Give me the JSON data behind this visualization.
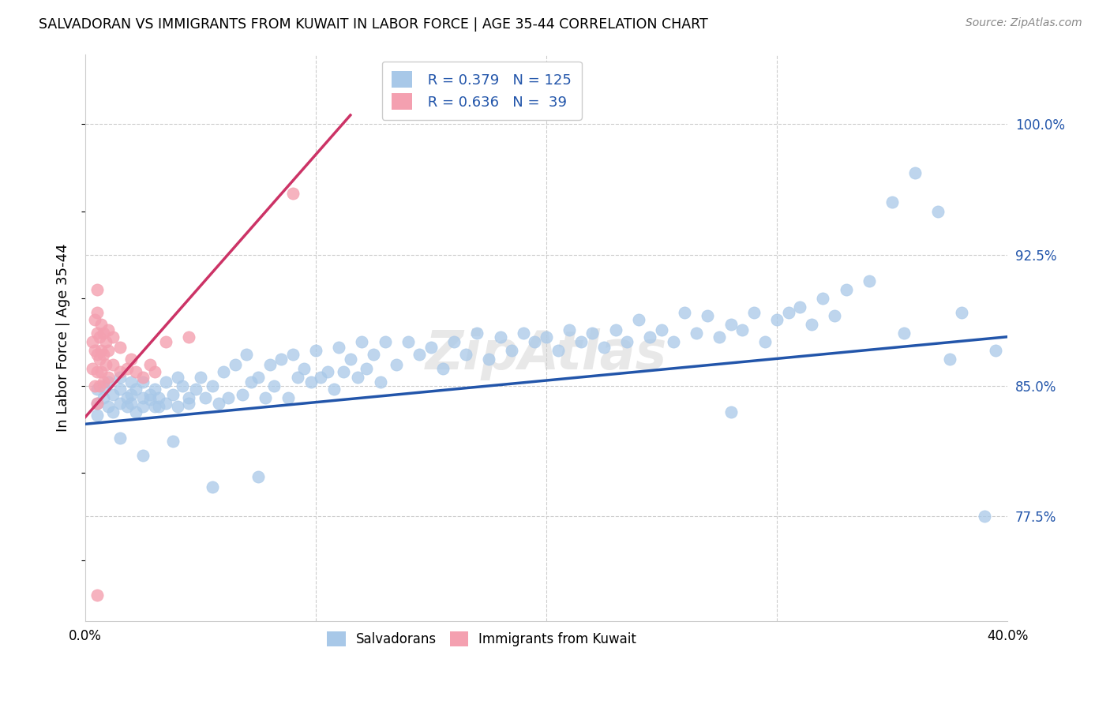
{
  "title": "SALVADORAN VS IMMIGRANTS FROM KUWAIT IN LABOR FORCE | AGE 35-44 CORRELATION CHART",
  "source": "Source: ZipAtlas.com",
  "ylabel": "In Labor Force | Age 35-44",
  "ytick_labels": [
    "77.5%",
    "85.0%",
    "92.5%",
    "100.0%"
  ],
  "ytick_values": [
    0.775,
    0.85,
    0.925,
    1.0
  ],
  "xlim": [
    0.0,
    0.4
  ],
  "ylim": [
    0.715,
    1.04
  ],
  "legend_r1": "R = 0.379",
  "legend_n1": "N = 125",
  "legend_r2": "R = 0.636",
  "legend_n2": "N =  39",
  "blue_color": "#a8c8e8",
  "pink_color": "#f4a0b0",
  "blue_line_color": "#2255aa",
  "pink_line_color": "#cc3366",
  "watermark": "ZipAtlas",
  "blue_trendline_x": [
    0.0,
    0.4
  ],
  "blue_trendline_y": [
    0.828,
    0.878
  ],
  "pink_trendline_x": [
    0.0,
    0.115
  ],
  "pink_trendline_y": [
    0.832,
    1.005
  ],
  "blue_scatter_x": [
    0.005,
    0.005,
    0.005,
    0.008,
    0.008,
    0.01,
    0.01,
    0.012,
    0.012,
    0.015,
    0.015,
    0.015,
    0.018,
    0.018,
    0.02,
    0.02,
    0.02,
    0.022,
    0.022,
    0.025,
    0.025,
    0.025,
    0.028,
    0.028,
    0.03,
    0.03,
    0.032,
    0.032,
    0.035,
    0.035,
    0.038,
    0.04,
    0.04,
    0.042,
    0.045,
    0.045,
    0.048,
    0.05,
    0.052,
    0.055,
    0.058,
    0.06,
    0.062,
    0.065,
    0.068,
    0.07,
    0.072,
    0.075,
    0.078,
    0.08,
    0.082,
    0.085,
    0.088,
    0.09,
    0.092,
    0.095,
    0.098,
    0.1,
    0.102,
    0.105,
    0.108,
    0.11,
    0.112,
    0.115,
    0.118,
    0.12,
    0.122,
    0.125,
    0.128,
    0.13,
    0.135,
    0.14,
    0.145,
    0.15,
    0.155,
    0.16,
    0.165,
    0.17,
    0.175,
    0.18,
    0.185,
    0.19,
    0.195,
    0.2,
    0.205,
    0.21,
    0.215,
    0.22,
    0.225,
    0.23,
    0.235,
    0.24,
    0.245,
    0.25,
    0.255,
    0.26,
    0.265,
    0.27,
    0.275,
    0.28,
    0.285,
    0.29,
    0.295,
    0.3,
    0.305,
    0.31,
    0.315,
    0.32,
    0.325,
    0.33,
    0.34,
    0.35,
    0.355,
    0.36,
    0.37,
    0.375,
    0.38,
    0.39,
    0.395,
    0.015,
    0.025,
    0.038,
    0.055,
    0.075,
    0.28
  ],
  "blue_scatter_y": [
    0.84,
    0.833,
    0.848,
    0.843,
    0.85,
    0.838,
    0.852,
    0.845,
    0.835,
    0.84,
    0.848,
    0.855,
    0.843,
    0.838,
    0.845,
    0.852,
    0.84,
    0.848,
    0.835,
    0.843,
    0.852,
    0.838,
    0.845,
    0.842,
    0.838,
    0.848,
    0.843,
    0.838,
    0.852,
    0.84,
    0.845,
    0.855,
    0.838,
    0.85,
    0.843,
    0.84,
    0.848,
    0.855,
    0.843,
    0.85,
    0.84,
    0.858,
    0.843,
    0.862,
    0.845,
    0.868,
    0.852,
    0.855,
    0.843,
    0.862,
    0.85,
    0.865,
    0.843,
    0.868,
    0.855,
    0.86,
    0.852,
    0.87,
    0.855,
    0.858,
    0.848,
    0.872,
    0.858,
    0.865,
    0.855,
    0.875,
    0.86,
    0.868,
    0.852,
    0.875,
    0.862,
    0.875,
    0.868,
    0.872,
    0.86,
    0.875,
    0.868,
    0.88,
    0.865,
    0.878,
    0.87,
    0.88,
    0.875,
    0.878,
    0.87,
    0.882,
    0.875,
    0.88,
    0.872,
    0.882,
    0.875,
    0.888,
    0.878,
    0.882,
    0.875,
    0.892,
    0.88,
    0.89,
    0.878,
    0.885,
    0.882,
    0.892,
    0.875,
    0.888,
    0.892,
    0.895,
    0.885,
    0.9,
    0.89,
    0.905,
    0.91,
    0.955,
    0.88,
    0.972,
    0.95,
    0.865,
    0.892,
    0.775,
    0.87,
    0.82,
    0.81,
    0.818,
    0.792,
    0.798,
    0.835
  ],
  "pink_scatter_x": [
    0.003,
    0.003,
    0.004,
    0.004,
    0.004,
    0.005,
    0.005,
    0.005,
    0.005,
    0.005,
    0.005,
    0.006,
    0.006,
    0.006,
    0.007,
    0.007,
    0.007,
    0.008,
    0.008,
    0.008,
    0.009,
    0.009,
    0.01,
    0.01,
    0.01,
    0.012,
    0.012,
    0.015,
    0.015,
    0.018,
    0.02,
    0.022,
    0.025,
    0.028,
    0.03,
    0.035,
    0.045,
    0.09,
    0.005
  ],
  "pink_scatter_y": [
    0.86,
    0.875,
    0.85,
    0.87,
    0.888,
    0.84,
    0.858,
    0.868,
    0.88,
    0.892,
    0.905,
    0.85,
    0.865,
    0.878,
    0.858,
    0.87,
    0.885,
    0.852,
    0.868,
    0.88,
    0.862,
    0.875,
    0.855,
    0.87,
    0.882,
    0.862,
    0.878,
    0.858,
    0.872,
    0.86,
    0.865,
    0.858,
    0.855,
    0.862,
    0.858,
    0.875,
    0.878,
    0.96,
    0.73
  ]
}
